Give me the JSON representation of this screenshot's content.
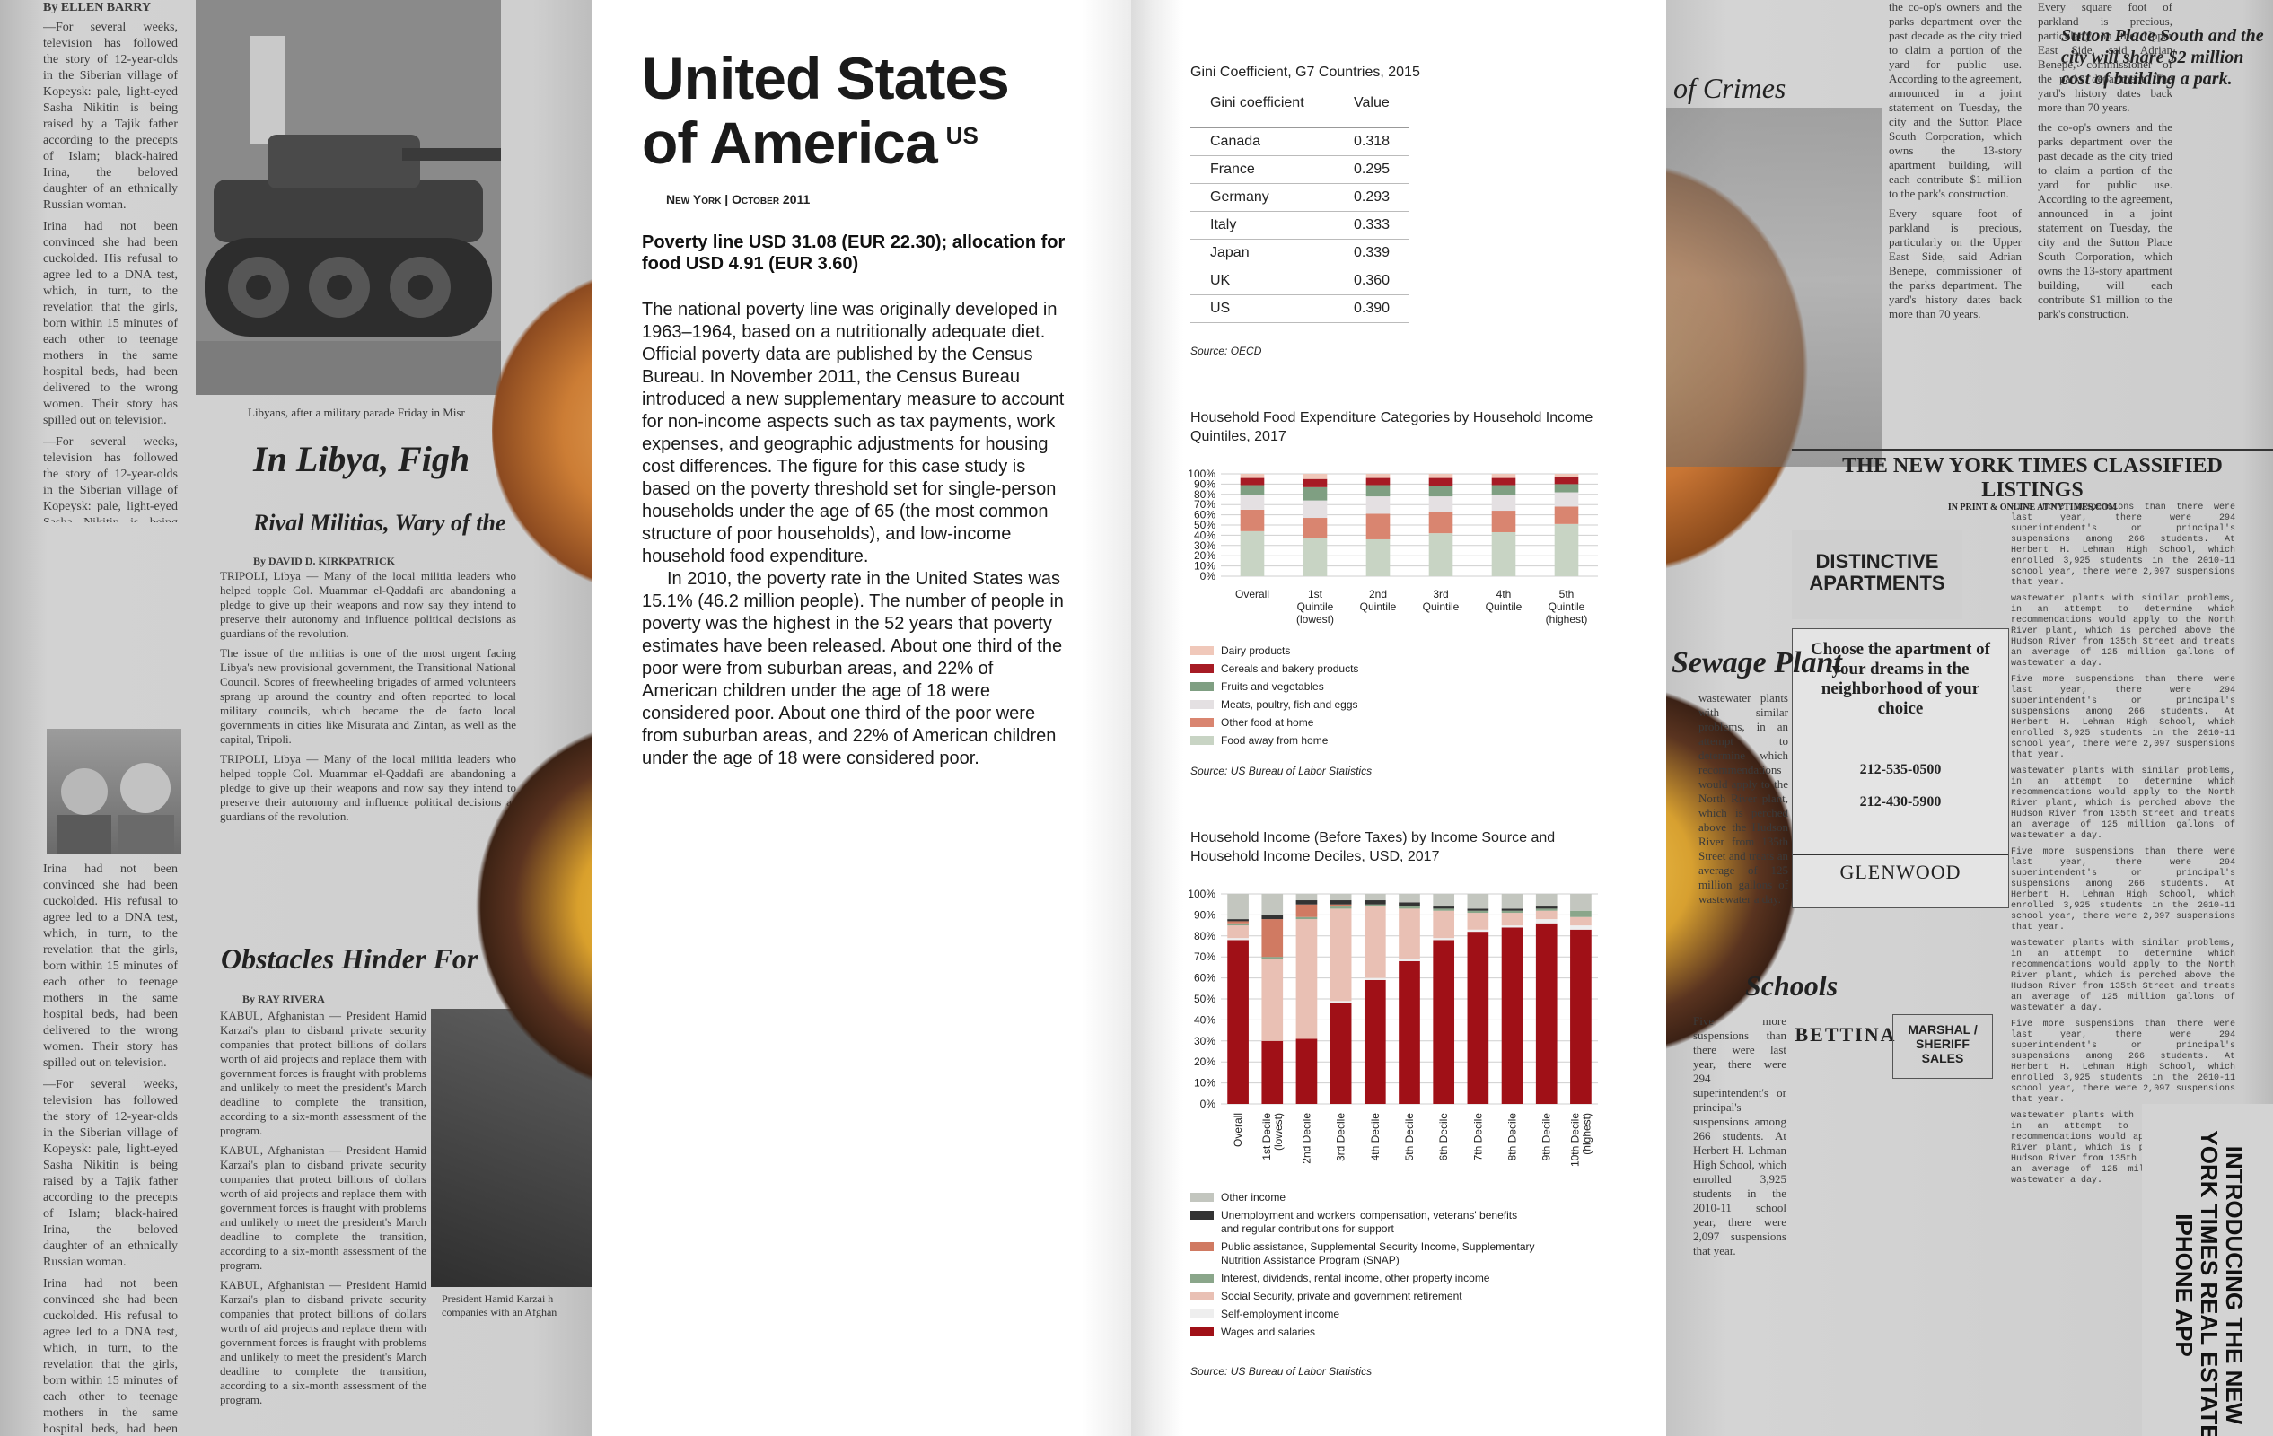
{
  "left_page": {
    "title_line1": "United States",
    "title_line2": "of America",
    "country_code": "US",
    "dateline": "New York | October 2011",
    "subhead": "Poverty line USD 31.08 (EUR 22.30); allocation for food USD 4.91 (EUR 3.60)",
    "paragraph1": "The national poverty line was originally developed in 1963–1964, based on a nutritionally adequate diet. Official poverty data are published by the Census Bureau. In November 2011, the Census Bureau introduced a new supplementary measure to account for non-income aspects such as tax payments, work expenses, and geographic adjustments for housing cost differences. The figure for this case study is based on the poverty threshold set for single-person households under the age of 65 (the most common structure of poor households), and low-income household food expenditure.",
    "paragraph2": "In 2010, the poverty rate in the United States was 15.1% (46.2 million people). The number of people in poverty was the highest in the 52 years that poverty estimates have been released. About one third of the poor were from suburban areas, and 22% of American children under the age of 18 were considered poor. About one third of the poor were from suburban areas, and 22% of American children under the age of 18 were considered poor."
  },
  "gini_table": {
    "title": "Gini Coefficient, G7 Countries, 2015",
    "col_headers": [
      "Gini coefficient",
      "Value"
    ],
    "rows": [
      {
        "country": "Canada",
        "value": "0.318"
      },
      {
        "country": "France",
        "value": "0.295"
      },
      {
        "country": "Germany",
        "value": "0.293"
      },
      {
        "country": "Italy",
        "value": "0.333"
      },
      {
        "country": "Japan",
        "value": "0.339"
      },
      {
        "country": "UK",
        "value": "0.360"
      },
      {
        "country": "US",
        "value": "0.390"
      }
    ],
    "source": "Source: OECD"
  },
  "chart_data": [
    {
      "type": "bar",
      "stacked": true,
      "title": "Household Food Expenditure Categories by Household Income Quintiles, 2017",
      "categories": [
        "Overall",
        "1st Quintile (lowest)",
        "2nd Quintile",
        "3rd Quintile",
        "4th Quintile",
        "5th Quintile (highest)"
      ],
      "category_lines": [
        [
          "Overall"
        ],
        [
          "1st",
          "Quintile",
          "(lowest)"
        ],
        [
          "2nd",
          "Quintile"
        ],
        [
          "3rd",
          "Quintile"
        ],
        [
          "4th",
          "Quintile"
        ],
        [
          "5th",
          "Quintile",
          "(highest)"
        ]
      ],
      "ylim": [
        0,
        100
      ],
      "yticks": [
        "0%",
        "10%",
        "20%",
        "30%",
        "40%",
        "50%",
        "60%",
        "70%",
        "80%",
        "90%",
        "100%"
      ],
      "grid": true,
      "legend_position": "bottom",
      "series": [
        {
          "name": "Food away from home",
          "color": "#c8d4c4",
          "values": [
            44,
            37,
            36,
            42,
            43,
            51
          ]
        },
        {
          "name": "Other food at home",
          "color": "#d98570",
          "values": [
            21,
            20,
            25,
            21,
            21,
            17
          ]
        },
        {
          "name": "Meats, poultry, fish and eggs",
          "color": "#e4e0e2",
          "values": [
            14,
            17,
            17,
            15,
            15,
            14
          ]
        },
        {
          "name": "Fruits and vegetables",
          "color": "#7f9f82",
          "values": [
            10,
            13,
            11,
            10,
            10,
            8
          ]
        },
        {
          "name": "Cereals and bakery products",
          "color": "#a61b24",
          "values": [
            7,
            8,
            7,
            8,
            7,
            7
          ]
        },
        {
          "name": "Dairy products",
          "color": "#f0c8ba",
          "values": [
            4,
            5,
            4,
            4,
            4,
            3
          ]
        }
      ],
      "legend_order": [
        "Dairy products",
        "Cereals and bakery products",
        "Fruits and vegetables",
        "Meats, poultry, fish and eggs",
        "Other food at home",
        "Food away from home"
      ],
      "source": "Source: US Bureau of Labor Statistics"
    },
    {
      "type": "bar",
      "stacked": true,
      "title": "Household Income (Before Taxes) by Income Source and Household Income Deciles, USD, 2017",
      "categories": [
        "Overall",
        "1st Decile (lowest)",
        "2nd Decile",
        "3rd Decile",
        "4th Decile",
        "5th Decile",
        "6th Decile",
        "7th Decile",
        "8th Decile",
        "9th Decile",
        "10th Decile (highest)"
      ],
      "category_lines": [
        [
          "Overall"
        ],
        [
          "1st Decile",
          "(lowest)"
        ],
        [
          "2nd Decile"
        ],
        [
          "3rd Decile"
        ],
        [
          "4th Decile"
        ],
        [
          "5th Decile"
        ],
        [
          "6th Decile"
        ],
        [
          "7th Decile"
        ],
        [
          "8th Decile"
        ],
        [
          "9th Decile"
        ],
        [
          "10th Decile",
          "(highest)"
        ]
      ],
      "ylim": [
        0,
        100
      ],
      "yticks": [
        "0%",
        "10%",
        "20%",
        "30%",
        "40%",
        "50%",
        "60%",
        "70%",
        "80%",
        "90%",
        "100%"
      ],
      "grid": true,
      "legend_position": "bottom",
      "series": [
        {
          "name": "Wages and salaries",
          "color": "#a01017",
          "values": [
            78,
            30,
            31,
            48,
            59,
            68,
            78,
            82,
            84,
            86,
            83
          ]
        },
        {
          "name": "Self-employment income",
          "color": "#eeeeee",
          "values": [
            1,
            0,
            0,
            1,
            1,
            1,
            1,
            1,
            1,
            2,
            2
          ]
        },
        {
          "name": "Social Security, private and government retirement",
          "color": "#e9c0b4",
          "values": [
            6,
            39,
            57,
            44,
            34,
            24,
            13,
            8,
            6,
            4,
            4
          ]
        },
        {
          "name": "Interest, dividends, rental income, other property income",
          "color": "#8aa68a",
          "values": [
            1,
            1,
            1,
            1,
            1,
            1,
            1,
            1,
            1,
            1,
            3
          ]
        },
        {
          "name": "Public assistance, Supplemental Security Income, Supplementary Nutrition Assistance Program (SNAP)",
          "color": "#d07a62",
          "values": [
            1,
            18,
            6,
            1,
            0,
            0,
            0,
            0,
            0,
            0,
            0
          ]
        },
        {
          "name": "Unemployment and workers' compensation, veterans' benefits and regular contributions for support",
          "color": "#333333",
          "values": [
            1,
            2,
            2,
            2,
            2,
            2,
            1,
            1,
            1,
            1,
            0
          ]
        },
        {
          "name": "Other income",
          "color": "#c3c6bf",
          "values": [
            12,
            10,
            3,
            3,
            3,
            4,
            6,
            7,
            7,
            6,
            8
          ]
        }
      ],
      "legend_order": [
        "Other income",
        "Unemployment and workers' compensation, veterans' benefits and regular contributions for support",
        "Public assistance, Supplemental Security Income, Supplementary Nutrition Assistance Program (SNAP)",
        "Interest, dividends, rental income, other property income",
        "Social Security, private and government retirement",
        "Self-employment income",
        "Wages and salaries"
      ],
      "legend_lines": {
        "Unemployment and workers' compensation, veterans' benefits and regular contributions for support": [
          "Unemployment and workers' compensation, veterans' benefits",
          "and regular contributions for support"
        ],
        "Public assistance, Supplemental Security Income, Supplementary Nutrition Assistance Program (SNAP)": [
          "Public assistance, Supplemental Security Income, Supplementary",
          "Nutrition Assistance Program (SNAP)"
        ]
      },
      "source": "Source: US Bureau of Labor Statistics"
    }
  ],
  "newspaper_left": {
    "byline_top": "By ELLEN BARRY",
    "photo_caption": "Libyans, after a military parade Friday in Misr",
    "headline1": "In Libya, Figh",
    "headline2": "Rival Militias, Wary of the",
    "byline2": "By DAVID D. KIRKPATRICK",
    "headline3": "Obstacles Hinder For",
    "byline3": "By RAY RIVERA",
    "caption2": "President Hamid Karzai h companies with an Afghan",
    "text1": "—For several weeks, television has followed the story of 12-year-olds in the Siberian village of Kopeysk: pale, light-eyed Sasha Nikitin is being raised by a Tajik father according to the precepts of Islam; black-haired Irina, the beloved daughter of an ethnically Russian woman.",
    "text2": "Irina had not been convinced she had been cuckolded. His refusal to agree led to a DNA test, which, in turn, to the revelation that the girls, born within 15 minutes of each other to teenage mothers in the same hospital beds, had been delivered to the wrong women. Their story has spilled out on television.",
    "text3": "TRIPOLI, Libya — Many of the local militia leaders who helped topple Col. Muammar el-Qaddafi are abandoning a pledge to give up their weapons and now say they intend to preserve their autonomy and influence political decisions as guardians of the revolution.",
    "text4": "The issue of the militias is one of the most urgent facing Libya's new provisional government, the Transitional National Council. Scores of freewheeling brigades of armed volunteers sprang up around the country and often reported to local military councils, which became the de facto local governments in cities like Misurata and Zintan, as well as the capital, Tripoli.",
    "text5": "KABUL, Afghanistan — President Hamid Karzai's plan to disband private security companies that protect billions of dollars worth of aid projects and replace them with government forces is fraught with problems and unlikely to meet the president's March deadline to complete the transition, according to a six-month assessment of the program."
  },
  "newspaper_right": {
    "headline1": "of Crimes",
    "headline2": "Sewage Plant",
    "headline3": "Schools",
    "headline4": "Sutton Place South and the city will share $2 million cost of building a park.",
    "classified_title": "THE NEW YORK TIMES CLASSIFIED LISTINGS",
    "classified_sub": "IN PRINT & ONLINE AT NYTIMES.COM",
    "ad1": "DISTINCTIVE APARTMENTS",
    "ad2": "Choose the apartment of your dreams in the neighborhood of your choice",
    "ad2_phone1": "212-535-0500",
    "ad2_phone2": "212-430-5900",
    "ad2_brand": "GLENWOOD",
    "ad3": "BETTINA",
    "ad4": "MARSHAL / SHERIFF SALES",
    "vertical_ad": "INTRODUCING THE NEW YORK TIMES REAL ESTATE IPHONE APP",
    "text1": "the co-op's owners and the parks department over the past decade as the city tried to claim a portion of the yard for public use. According to the agreement, announced in a joint statement on Tuesday, the city and the Sutton Place South Corporation, which owns the 13-story apartment building, will each contribute $1 million to the park's construction.",
    "text2": "Every square foot of parkland is precious, particularly on the Upper East Side, said Adrian Benepe, commissioner of the parks department. The yard's history dates back more than 70 years.",
    "text3": "wastewater plants with similar problems, in an attempt to determine which recommendations would apply to the North River plant, which is perched above the Hudson River from 135th Street and treats an average of 125 million gallons of wastewater a day.",
    "text4": "Five more suspensions than there were last year, there were 294 superintendent's or principal's suspensions among 266 students. At Herbert H. Lehman High School, which enrolled 3,925 students in the 2010-11 school year, there were 2,097 suspensions that year."
  }
}
